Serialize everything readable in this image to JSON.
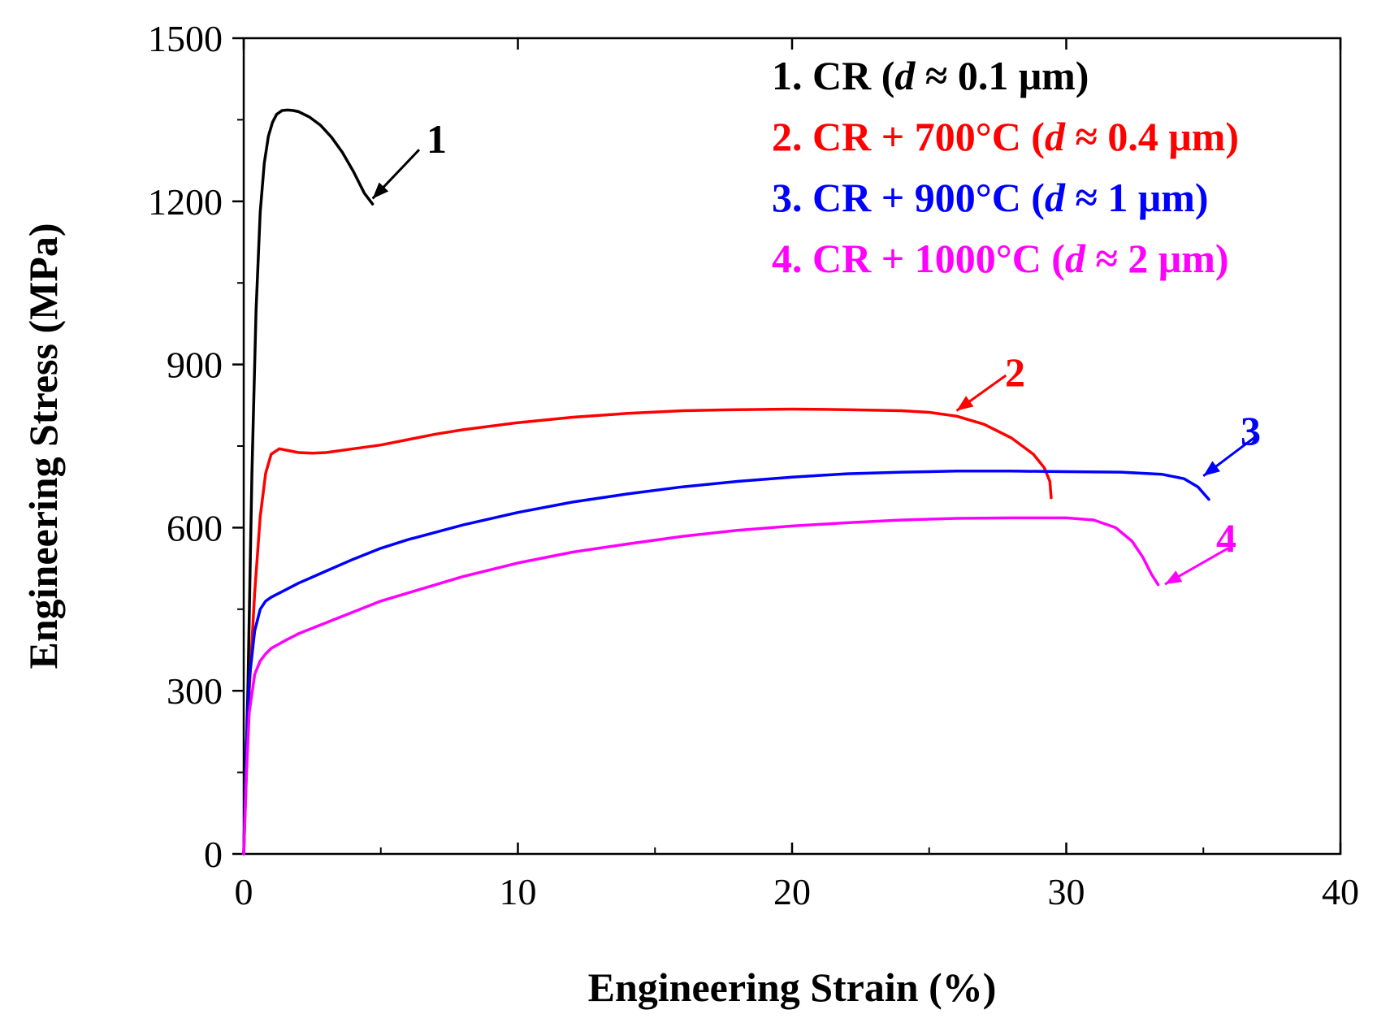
{
  "chart_data": {
    "type": "line",
    "xlabel": "Engineering Strain (%)",
    "ylabel": "Engineering Stress (MPa)",
    "xlim": [
      0,
      40
    ],
    "ylim": [
      0,
      1500
    ],
    "xticks": [
      0,
      10,
      20,
      30,
      40
    ],
    "yticks": [
      0,
      300,
      600,
      900,
      1200,
      1500
    ],
    "grid": false,
    "legend_position": "top-right",
    "series": [
      {
        "id": "1",
        "color": "#000000",
        "legend": {
          "prefix": "1. CR (",
          "var": "d",
          "suffix": " ≈ 0.1 μm)"
        },
        "callout": "1",
        "x": [
          0,
          0.15,
          0.3,
          0.45,
          0.6,
          0.75,
          0.9,
          1.05,
          1.2,
          1.4,
          1.6,
          1.8,
          2.0,
          2.4,
          2.8,
          3.2,
          3.6,
          4.0,
          4.4,
          4.7
        ],
        "y": [
          0,
          300,
          700,
          1000,
          1180,
          1270,
          1320,
          1345,
          1360,
          1367,
          1368,
          1367,
          1365,
          1355,
          1340,
          1318,
          1290,
          1255,
          1215,
          1195
        ]
      },
      {
        "id": "2",
        "color": "#ff0000",
        "legend": {
          "prefix": "2. CR + 700°C (",
          "var": "d",
          "suffix": " ≈ 0.4 μm)"
        },
        "callout": "2",
        "x": [
          0,
          0.2,
          0.4,
          0.6,
          0.8,
          1.0,
          1.3,
          1.6,
          2.0,
          2.5,
          3.0,
          4.0,
          5.0,
          6.0,
          7.0,
          8.0,
          10.0,
          12.0,
          14.0,
          16.0,
          18.0,
          20.0,
          22.0,
          24.0,
          25.0,
          26.0,
          27.0,
          28.0,
          28.8,
          29.2,
          29.4,
          29.45
        ],
        "y": [
          0,
          300,
          480,
          620,
          700,
          735,
          745,
          742,
          738,
          737,
          738,
          745,
          752,
          762,
          772,
          780,
          793,
          803,
          810,
          815,
          817,
          818,
          817,
          815,
          812,
          805,
          790,
          765,
          735,
          710,
          685,
          655
        ]
      },
      {
        "id": "3",
        "color": "#0000ff",
        "legend": {
          "prefix": "3. CR + 900°C (",
          "var": "d",
          "suffix": " ≈ 1 μm)"
        },
        "callout": "3",
        "x": [
          0,
          0.1,
          0.2,
          0.4,
          0.6,
          0.8,
          1.0,
          1.5,
          2.0,
          3.0,
          4.0,
          5.0,
          6.0,
          8.0,
          10.0,
          12.0,
          14.0,
          16.0,
          18.0,
          20.0,
          22.0,
          24.0,
          26.0,
          28.0,
          30.0,
          32.0,
          33.5,
          34.3,
          34.8,
          35.2
        ],
        "y": [
          0,
          200,
          320,
          410,
          450,
          465,
          472,
          485,
          498,
          520,
          542,
          562,
          578,
          605,
          628,
          647,
          662,
          675,
          685,
          693,
          699,
          702,
          704,
          704,
          703,
          702,
          698,
          690,
          675,
          652
        ]
      },
      {
        "id": "4",
        "color": "#ff00ff",
        "legend": {
          "prefix": "4. CR + 1000°C (",
          "var": "d",
          "suffix": " ≈ 2 μm)"
        },
        "callout": "4",
        "x": [
          0,
          0.1,
          0.2,
          0.4,
          0.6,
          0.8,
          1.0,
          1.5,
          2.0,
          3.0,
          4.0,
          5.0,
          6.0,
          8.0,
          10.0,
          12.0,
          14.0,
          16.0,
          18.0,
          20.0,
          22.0,
          24.0,
          26.0,
          28.0,
          30.0,
          31.0,
          31.8,
          32.4,
          32.8,
          33.1,
          33.35
        ],
        "y": [
          0,
          150,
          260,
          330,
          355,
          368,
          378,
          392,
          405,
          425,
          445,
          465,
          480,
          510,
          535,
          555,
          570,
          584,
          595,
          603,
          609,
          614,
          617,
          618,
          618,
          614,
          600,
          575,
          545,
          515,
          495
        ]
      }
    ]
  }
}
